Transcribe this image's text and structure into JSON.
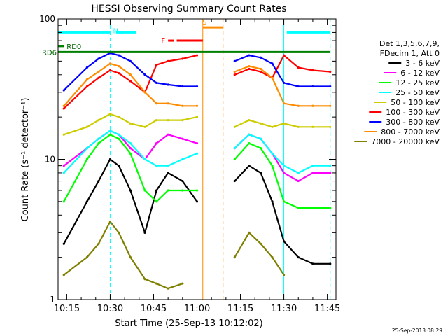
{
  "chart_data": {
    "type": "line",
    "title": "HESSI Observing Summary Count Rates",
    "xlabel": "Start Time (25-Sep-13 10:12:02)",
    "ylabel": "Count Rate (s⁻¹ detector⁻¹)",
    "x_unit": "time (HH:MM)",
    "xlim": [
      "10:12",
      "11:48"
    ],
    "ylim": [
      1,
      100
    ],
    "y_scale": "log",
    "x_ticks": [
      "10:15",
      "10:30",
      "10:45",
      "11:00",
      "11:15",
      "11:30",
      "11:45"
    ],
    "y_ticks": [
      {
        "value": 1,
        "label": "1"
      },
      {
        "value": 10,
        "label": "10"
      },
      {
        "value": 100,
        "label": "100"
      }
    ],
    "legend_header": [
      "Det 1,3,5,6,7,9,",
      "FDecim 1, Att 0"
    ],
    "legend_position": "right",
    "timestamp": "25-Sep-2013 08:29",
    "series": [
      {
        "name": "3 - 6 keV",
        "color": "#000000",
        "points": [
          [
            "10:14",
            2.5
          ],
          [
            "10:22",
            5
          ],
          [
            "10:26",
            7
          ],
          [
            "10:30",
            10
          ],
          [
            "10:33",
            9
          ],
          [
            "10:37",
            6
          ],
          [
            "10:42",
            3
          ],
          [
            "10:46",
            6
          ],
          [
            "10:50",
            8
          ],
          [
            "10:55",
            7
          ],
          [
            "11:00",
            5
          ],
          [
            "11:05",
            null
          ],
          [
            "11:10",
            null
          ],
          [
            "11:13",
            7
          ],
          [
            "11:18",
            9
          ],
          [
            "11:22",
            8
          ],
          [
            "11:26",
            5
          ],
          [
            "11:30",
            2.6
          ],
          [
            "11:35",
            2
          ],
          [
            "11:40",
            1.8
          ],
          [
            "11:46",
            1.8
          ]
        ]
      },
      {
        "name": "6 - 12 keV",
        "color": "#ff00ff",
        "points": [
          [
            "10:14",
            9
          ],
          [
            "10:22",
            12
          ],
          [
            "10:26",
            14
          ],
          [
            "10:30",
            16
          ],
          [
            "10:33",
            15
          ],
          [
            "10:37",
            12
          ],
          [
            "10:42",
            10
          ],
          [
            "10:46",
            13
          ],
          [
            "10:50",
            15
          ],
          [
            "10:55",
            14
          ],
          [
            "11:00",
            13
          ],
          [
            "11:05",
            null
          ],
          [
            "11:10",
            null
          ],
          [
            "11:13",
            12
          ],
          [
            "11:18",
            15
          ],
          [
            "11:22",
            14
          ],
          [
            "11:26",
            11
          ],
          [
            "11:30",
            8
          ],
          [
            "11:35",
            7
          ],
          [
            "11:40",
            8
          ],
          [
            "11:46",
            8
          ]
        ]
      },
      {
        "name": "12 - 25 keV",
        "color": "#00ff00",
        "points": [
          [
            "10:14",
            5
          ],
          [
            "10:22",
            10
          ],
          [
            "10:26",
            13
          ],
          [
            "10:30",
            15
          ],
          [
            "10:33",
            14
          ],
          [
            "10:37",
            11
          ],
          [
            "10:42",
            6
          ],
          [
            "10:46",
            5
          ],
          [
            "10:50",
            6
          ],
          [
            "10:55",
            6
          ],
          [
            "11:00",
            6
          ],
          [
            "11:05",
            null
          ],
          [
            "11:10",
            null
          ],
          [
            "11:13",
            10
          ],
          [
            "11:18",
            13
          ],
          [
            "11:22",
            12
          ],
          [
            "11:26",
            9
          ],
          [
            "11:30",
            5
          ],
          [
            "11:35",
            4.5
          ],
          [
            "11:40",
            4.5
          ],
          [
            "11:46",
            4.5
          ]
        ]
      },
      {
        "name": "25 - 50 keV",
        "color": "#00ffff",
        "points": [
          [
            "10:14",
            8
          ],
          [
            "10:22",
            12
          ],
          [
            "10:26",
            14
          ],
          [
            "10:30",
            16
          ],
          [
            "10:33",
            15
          ],
          [
            "10:37",
            13
          ],
          [
            "10:42",
            10
          ],
          [
            "10:46",
            9
          ],
          [
            "10:50",
            9
          ],
          [
            "10:55",
            10
          ],
          [
            "11:00",
            11
          ],
          [
            "11:05",
            null
          ],
          [
            "11:10",
            null
          ],
          [
            "11:13",
            12
          ],
          [
            "11:18",
            15
          ],
          [
            "11:22",
            14
          ],
          [
            "11:26",
            11
          ],
          [
            "11:30",
            9
          ],
          [
            "11:35",
            8
          ],
          [
            "11:40",
            9
          ],
          [
            "11:46",
            9
          ]
        ]
      },
      {
        "name": "50 - 100 keV",
        "color": "#cccc00",
        "points": [
          [
            "10:14",
            15
          ],
          [
            "10:22",
            17
          ],
          [
            "10:26",
            19
          ],
          [
            "10:30",
            21
          ],
          [
            "10:33",
            20
          ],
          [
            "10:37",
            18
          ],
          [
            "10:42",
            17
          ],
          [
            "10:46",
            19
          ],
          [
            "10:50",
            19
          ],
          [
            "10:55",
            19
          ],
          [
            "11:00",
            20
          ],
          [
            "11:05",
            null
          ],
          [
            "11:10",
            null
          ],
          [
            "11:13",
            17
          ],
          [
            "11:18",
            19
          ],
          [
            "11:22",
            18
          ],
          [
            "11:26",
            17
          ],
          [
            "11:30",
            18
          ],
          [
            "11:35",
            17
          ],
          [
            "11:40",
            17
          ],
          [
            "11:46",
            17
          ]
        ]
      },
      {
        "name": "100 - 300 keV",
        "color": "#ff0000",
        "points": [
          [
            "10:14",
            23
          ],
          [
            "10:22",
            33
          ],
          [
            "10:26",
            38
          ],
          [
            "10:30",
            43
          ],
          [
            "10:33",
            41
          ],
          [
            "10:37",
            36
          ],
          [
            "10:42",
            30
          ],
          [
            "10:46",
            47
          ],
          [
            "10:50",
            50
          ],
          [
            "10:55",
            52
          ],
          [
            "11:00",
            55
          ],
          [
            "11:05",
            null
          ],
          [
            "11:10",
            null
          ],
          [
            "11:13",
            40
          ],
          [
            "11:18",
            44
          ],
          [
            "11:22",
            42
          ],
          [
            "11:26",
            38
          ],
          [
            "11:30",
            55
          ],
          [
            "11:35",
            45
          ],
          [
            "11:40",
            43
          ],
          [
            "11:46",
            42
          ]
        ]
      },
      {
        "name": "300 - 800 keV",
        "color": "#0000ff",
        "points": [
          [
            "10:14",
            31
          ],
          [
            "10:22",
            45
          ],
          [
            "10:26",
            52
          ],
          [
            "10:30",
            57
          ],
          [
            "10:33",
            55
          ],
          [
            "10:37",
            50
          ],
          [
            "10:42",
            40
          ],
          [
            "10:46",
            35
          ],
          [
            "10:50",
            34
          ],
          [
            "10:55",
            33
          ],
          [
            "11:00",
            33
          ],
          [
            "11:05",
            null
          ],
          [
            "11:10",
            null
          ],
          [
            "11:13",
            50
          ],
          [
            "11:18",
            55
          ],
          [
            "11:22",
            53
          ],
          [
            "11:26",
            48
          ],
          [
            "11:30",
            35
          ],
          [
            "11:35",
            33
          ],
          [
            "11:40",
            33
          ],
          [
            "11:46",
            33
          ]
        ]
      },
      {
        "name": "800 - 7000 keV",
        "color": "#ff8c00",
        "points": [
          [
            "10:14",
            24
          ],
          [
            "10:22",
            37
          ],
          [
            "10:26",
            42
          ],
          [
            "10:30",
            48
          ],
          [
            "10:33",
            46
          ],
          [
            "10:37",
            40
          ],
          [
            "10:42",
            30
          ],
          [
            "10:46",
            25
          ],
          [
            "10:50",
            25
          ],
          [
            "10:55",
            24
          ],
          [
            "11:00",
            24
          ],
          [
            "11:05",
            null
          ],
          [
            "11:10",
            null
          ],
          [
            "11:13",
            42
          ],
          [
            "11:18",
            46
          ],
          [
            "11:22",
            44
          ],
          [
            "11:26",
            38
          ],
          [
            "11:30",
            25
          ],
          [
            "11:35",
            24
          ],
          [
            "11:40",
            24
          ],
          [
            "11:46",
            24
          ]
        ]
      },
      {
        "name": "7000 - 20000 keV",
        "color": "#808000",
        "points": [
          [
            "10:14",
            1.5
          ],
          [
            "10:22",
            2
          ],
          [
            "10:26",
            2.5
          ],
          [
            "10:30",
            3.6
          ],
          [
            "10:33",
            3
          ],
          [
            "10:37",
            2
          ],
          [
            "10:42",
            1.4
          ],
          [
            "10:46",
            1.3
          ],
          [
            "10:50",
            1.2
          ],
          [
            "10:55",
            1.3
          ],
          [
            "11:00",
            null
          ],
          [
            "11:05",
            null
          ],
          [
            "11:10",
            null
          ],
          [
            "11:13",
            2
          ],
          [
            "11:18",
            3
          ],
          [
            "11:22",
            2.5
          ],
          [
            "11:26",
            2
          ],
          [
            "11:30",
            1.5
          ],
          [
            "11:35",
            null
          ],
          [
            "11:40",
            null
          ],
          [
            "11:46",
            null
          ]
        ]
      }
    ],
    "flag_bars": [
      {
        "label": "N",
        "color": "#00ffff",
        "value": 80,
        "segments": [
          [
            "10:12",
            "10:30"
          ],
          [
            "10:32",
            "10:39"
          ],
          [
            "11:31",
            "11:46"
          ]
        ]
      },
      {
        "label": "F",
        "color": "#ff0000",
        "value": 70,
        "segments": [
          [
            "10:50",
            "10:52"
          ],
          [
            "10:53",
            "11:02"
          ]
        ]
      },
      {
        "label": "S",
        "color": "#ff8c00",
        "value": 87,
        "segments": [
          [
            "11:02",
            "11:09"
          ]
        ]
      },
      {
        "label": "RD0",
        "color": "#008000",
        "value": 64,
        "segments": [
          [
            "10:12",
            "10:14"
          ]
        ]
      },
      {
        "label": "RD6",
        "color": "#008000",
        "value": 58,
        "segments": [
          [
            "10:12",
            "10:45"
          ],
          [
            "10:45",
            "11:12"
          ],
          [
            "11:12",
            "11:30"
          ],
          [
            "11:30",
            "11:46"
          ]
        ]
      }
    ],
    "vertical_markers": [
      {
        "color": "#00ffff",
        "style": "dashed",
        "x": "10:30"
      },
      {
        "color": "#00ffff",
        "style": "solid",
        "x": "11:30"
      },
      {
        "color": "#00ffff",
        "style": "dashed",
        "x": "11:46"
      },
      {
        "color": "#ff8c00",
        "style": "solid",
        "x": "11:02"
      },
      {
        "color": "#ff8c00",
        "style": "dashed",
        "x": "11:09"
      }
    ]
  }
}
